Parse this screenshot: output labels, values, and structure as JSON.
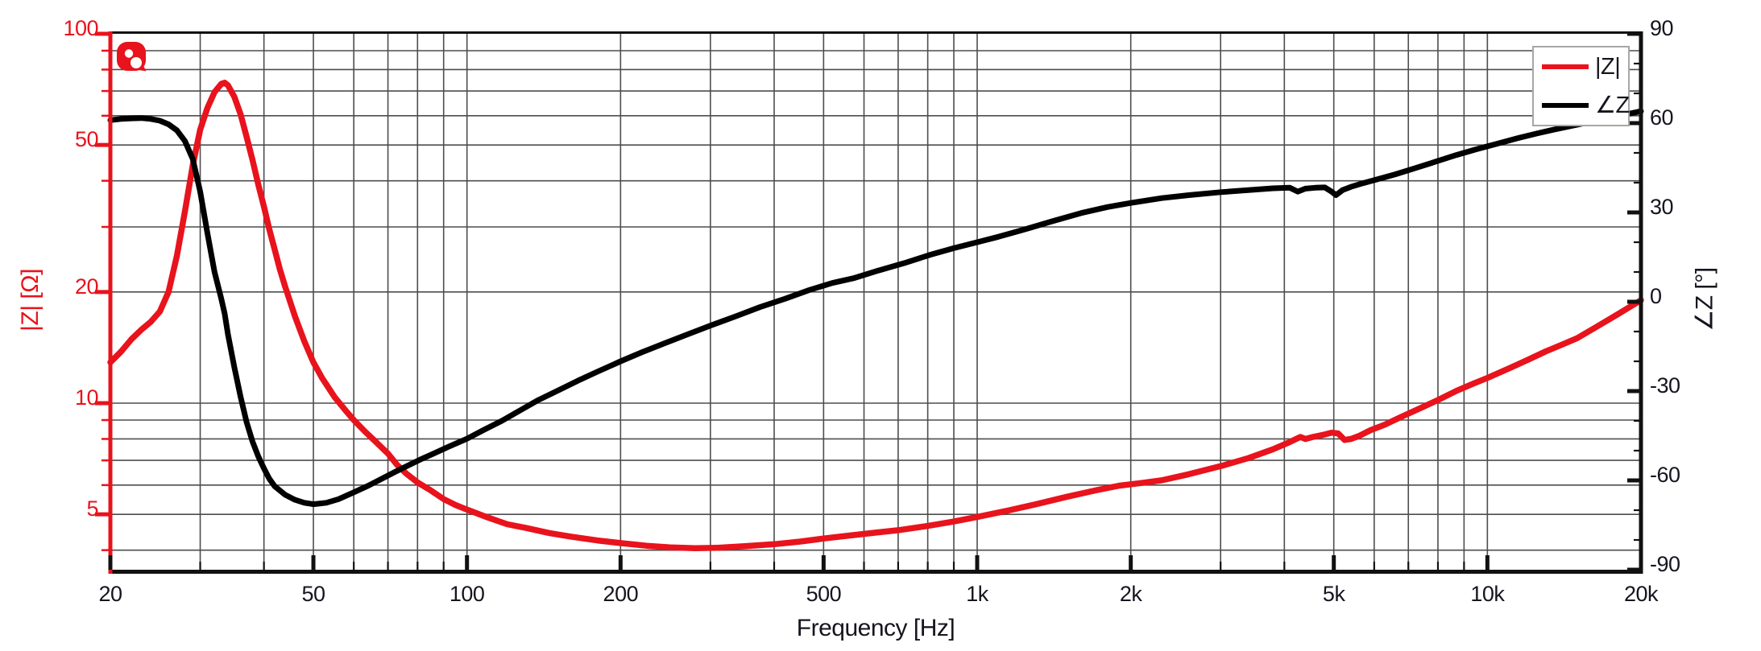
{
  "figure": {
    "background": "#ffffff",
    "accent_red": "#e8131c",
    "curve_black": "#000000",
    "grid_color": "#4d4d4d",
    "text_color": "#15151f"
  },
  "logo": {
    "name": "red-blob-logo",
    "color": "#e8131c"
  },
  "legend": {
    "items": [
      {
        "label": "|Z|",
        "color": "#e8131c"
      },
      {
        "label": "∠Z",
        "color": "#000000"
      }
    ]
  },
  "axes": {
    "x": {
      "title": "Frequency [Hz]",
      "tick_labels": [
        "20",
        "50",
        "100",
        "200",
        "500",
        "1k",
        "2k",
        "5k",
        "10k",
        "20k"
      ],
      "tick_values": [
        20,
        50,
        100,
        200,
        500,
        1000,
        2000,
        5000,
        10000,
        20000
      ]
    },
    "y_left": {
      "title": "|Z| [Ω]",
      "color": "#e8131c",
      "tick_labels": [
        "100",
        "50",
        "20",
        "10",
        "5"
      ],
      "tick_values": [
        100,
        50,
        20,
        10,
        5
      ]
    },
    "y_right": {
      "title": "∠Z [°]",
      "color": "#15151f",
      "tick_labels": [
        "90",
        "60",
        "30",
        "0",
        "-30",
        "-60",
        "-90"
      ],
      "tick_values": [
        90,
        60,
        30,
        0,
        -30,
        -60,
        -90
      ]
    }
  },
  "chart_data": {
    "type": "line",
    "title": "",
    "xlabel": "Frequency [Hz]",
    "x_scale": "log",
    "x_range": [
      20,
      20000
    ],
    "y_left": {
      "label": "|Z| [Ω]",
      "scale": "log",
      "range": [
        3.5,
        100
      ],
      "ticks": [
        5,
        10,
        20,
        50,
        100
      ]
    },
    "y_right": {
      "label": "∠Z [°]",
      "scale": "linear",
      "range": [
        -90,
        90
      ],
      "ticks": [
        -90,
        -60,
        -30,
        0,
        30,
        60,
        90
      ]
    },
    "grid": {
      "x_minor": [
        30,
        40,
        50,
        60,
        70,
        80,
        90,
        100,
        200,
        300,
        400,
        500,
        600,
        700,
        800,
        900,
        1000,
        2000,
        3000,
        4000,
        5000,
        6000,
        7000,
        8000,
        9000,
        10000
      ],
      "y_left_minor": [
        90,
        80,
        70,
        60,
        50,
        40,
        30,
        20,
        10,
        9,
        8,
        7,
        6,
        5,
        4
      ],
      "y_right_minor_step": 10
    },
    "legend_position": "upper right",
    "series": [
      {
        "name": "|Z|",
        "axis": "left",
        "unit": "Ω",
        "color": "#e8131c",
        "points": [
          [
            20,
            12.9
          ],
          [
            21,
            13.8
          ],
          [
            22,
            14.9
          ],
          [
            23,
            15.8
          ],
          [
            24,
            16.6
          ],
          [
            25,
            17.7
          ],
          [
            26,
            20
          ],
          [
            27,
            25
          ],
          [
            28,
            33
          ],
          [
            29,
            44
          ],
          [
            30,
            55
          ],
          [
            31,
            63
          ],
          [
            32,
            69.5
          ],
          [
            33,
            73.2
          ],
          [
            33.5,
            73.7
          ],
          [
            34,
            72.5
          ],
          [
            35,
            67.5
          ],
          [
            36,
            60.5
          ],
          [
            37,
            52.5
          ],
          [
            38,
            45.5
          ],
          [
            39,
            39
          ],
          [
            40,
            34
          ],
          [
            41,
            29.5
          ],
          [
            42,
            26
          ],
          [
            43,
            23
          ],
          [
            44,
            20.7
          ],
          [
            46,
            17.2
          ],
          [
            48,
            14.7
          ],
          [
            50,
            12.9
          ],
          [
            52,
            11.7
          ],
          [
            55,
            10.4
          ],
          [
            58,
            9.5
          ],
          [
            60,
            9.0
          ],
          [
            63,
            8.4
          ],
          [
            66,
            7.9
          ],
          [
            70,
            7.3
          ],
          [
            73,
            6.8
          ],
          [
            76,
            6.45
          ],
          [
            80,
            6.1
          ],
          [
            85,
            5.8
          ],
          [
            90,
            5.5
          ],
          [
            95,
            5.3
          ],
          [
            100,
            5.15
          ],
          [
            110,
            4.9
          ],
          [
            120,
            4.7
          ],
          [
            130,
            4.6
          ],
          [
            145,
            4.45
          ],
          [
            160,
            4.35
          ],
          [
            180,
            4.25
          ],
          [
            200,
            4.18
          ],
          [
            225,
            4.11
          ],
          [
            250,
            4.07
          ],
          [
            280,
            4.05
          ],
          [
            310,
            4.06
          ],
          [
            350,
            4.1
          ],
          [
            400,
            4.15
          ],
          [
            450,
            4.22
          ],
          [
            500,
            4.3
          ],
          [
            560,
            4.38
          ],
          [
            630,
            4.46
          ],
          [
            700,
            4.53
          ],
          [
            800,
            4.65
          ],
          [
            900,
            4.78
          ],
          [
            1000,
            4.92
          ],
          [
            1150,
            5.12
          ],
          [
            1300,
            5.32
          ],
          [
            1500,
            5.58
          ],
          [
            1700,
            5.8
          ],
          [
            1900,
            5.98
          ],
          [
            2100,
            6.08
          ],
          [
            2300,
            6.18
          ],
          [
            2600,
            6.42
          ],
          [
            3000,
            6.75
          ],
          [
            3400,
            7.1
          ],
          [
            3800,
            7.5
          ],
          [
            4100,
            7.85
          ],
          [
            4300,
            8.1
          ],
          [
            4400,
            8.0
          ],
          [
            4550,
            8.1
          ],
          [
            4750,
            8.2
          ],
          [
            4950,
            8.32
          ],
          [
            5100,
            8.28
          ],
          [
            5250,
            7.95
          ],
          [
            5400,
            8.0
          ],
          [
            5600,
            8.15
          ],
          [
            5900,
            8.45
          ],
          [
            6300,
            8.75
          ],
          [
            6800,
            9.2
          ],
          [
            7400,
            9.7
          ],
          [
            8000,
            10.2
          ],
          [
            8700,
            10.8
          ],
          [
            9400,
            11.3
          ],
          [
            10000,
            11.7
          ],
          [
            11000,
            12.4
          ],
          [
            12000,
            13.1
          ],
          [
            13000,
            13.8
          ],
          [
            14000,
            14.4
          ],
          [
            15000,
            15.0
          ],
          [
            16500,
            16.2
          ],
          [
            18000,
            17.4
          ],
          [
            19000,
            18.2
          ],
          [
            20000,
            19.0
          ]
        ]
      },
      {
        "name": "∠Z",
        "axis": "right",
        "unit": "°",
        "color": "#000000",
        "points": [
          [
            20,
            61
          ],
          [
            21,
            61.4
          ],
          [
            22,
            61.6
          ],
          [
            23,
            61.7
          ],
          [
            24,
            61.4
          ],
          [
            25,
            60.8
          ],
          [
            26,
            59.6
          ],
          [
            27,
            57.6
          ],
          [
            28,
            54
          ],
          [
            29,
            48
          ],
          [
            30,
            37
          ],
          [
            31,
            23
          ],
          [
            32,
            10
          ],
          [
            33,
            1
          ],
          [
            33.5,
            -4
          ],
          [
            34,
            -11
          ],
          [
            35,
            -22
          ],
          [
            36,
            -32
          ],
          [
            37,
            -40.5
          ],
          [
            38,
            -47
          ],
          [
            39,
            -52
          ],
          [
            40,
            -56
          ],
          [
            41,
            -59.5
          ],
          [
            42,
            -62
          ],
          [
            44,
            -64.8
          ],
          [
            46,
            -66.5
          ],
          [
            48,
            -67.5
          ],
          [
            50,
            -68
          ],
          [
            53,
            -67.5
          ],
          [
            56,
            -66.3
          ],
          [
            60,
            -64
          ],
          [
            64,
            -61.8
          ],
          [
            68,
            -59.5
          ],
          [
            72,
            -57.3
          ],
          [
            76,
            -55.3
          ],
          [
            81,
            -53
          ],
          [
            86,
            -51
          ],
          [
            92,
            -48.7
          ],
          [
            100,
            -46
          ],
          [
            108,
            -43
          ],
          [
            117,
            -40
          ],
          [
            127,
            -36.5
          ],
          [
            138,
            -33
          ],
          [
            150,
            -30
          ],
          [
            165,
            -26.5
          ],
          [
            180,
            -23.5
          ],
          [
            200,
            -20
          ],
          [
            220,
            -17
          ],
          [
            245,
            -13.8
          ],
          [
            270,
            -11
          ],
          [
            300,
            -8
          ],
          [
            335,
            -5
          ],
          [
            375,
            -1.8
          ],
          [
            420,
            1
          ],
          [
            470,
            4
          ],
          [
            520,
            6.3
          ],
          [
            575,
            8
          ],
          [
            640,
            10.5
          ],
          [
            720,
            13
          ],
          [
            810,
            15.8
          ],
          [
            900,
            18
          ],
          [
            1000,
            20
          ],
          [
            1100,
            21.8
          ],
          [
            1250,
            24.5
          ],
          [
            1400,
            27
          ],
          [
            1600,
            29.8
          ],
          [
            1800,
            31.8
          ],
          [
            2000,
            33.2
          ],
          [
            2300,
            34.8
          ],
          [
            2600,
            35.8
          ],
          [
            3000,
            36.8
          ],
          [
            3400,
            37.5
          ],
          [
            3800,
            38.1
          ],
          [
            4100,
            38.3
          ],
          [
            4250,
            37
          ],
          [
            4400,
            38
          ],
          [
            4600,
            38.3
          ],
          [
            4800,
            38.4
          ],
          [
            4950,
            37
          ],
          [
            5050,
            35.8
          ],
          [
            5200,
            37.5
          ],
          [
            5400,
            38.6
          ],
          [
            5700,
            39.8
          ],
          [
            6100,
            41.2
          ],
          [
            6600,
            42.8
          ],
          [
            7200,
            44.8
          ],
          [
            7900,
            47
          ],
          [
            8700,
            49.3
          ],
          [
            9500,
            51.2
          ],
          [
            10500,
            53.2
          ],
          [
            11500,
            55
          ],
          [
            12500,
            56.5
          ],
          [
            13500,
            57.8
          ],
          [
            15000,
            59.5
          ],
          [
            16500,
            61
          ],
          [
            18000,
            62.4
          ],
          [
            19000,
            63.2
          ],
          [
            20000,
            64
          ]
        ]
      }
    ]
  }
}
